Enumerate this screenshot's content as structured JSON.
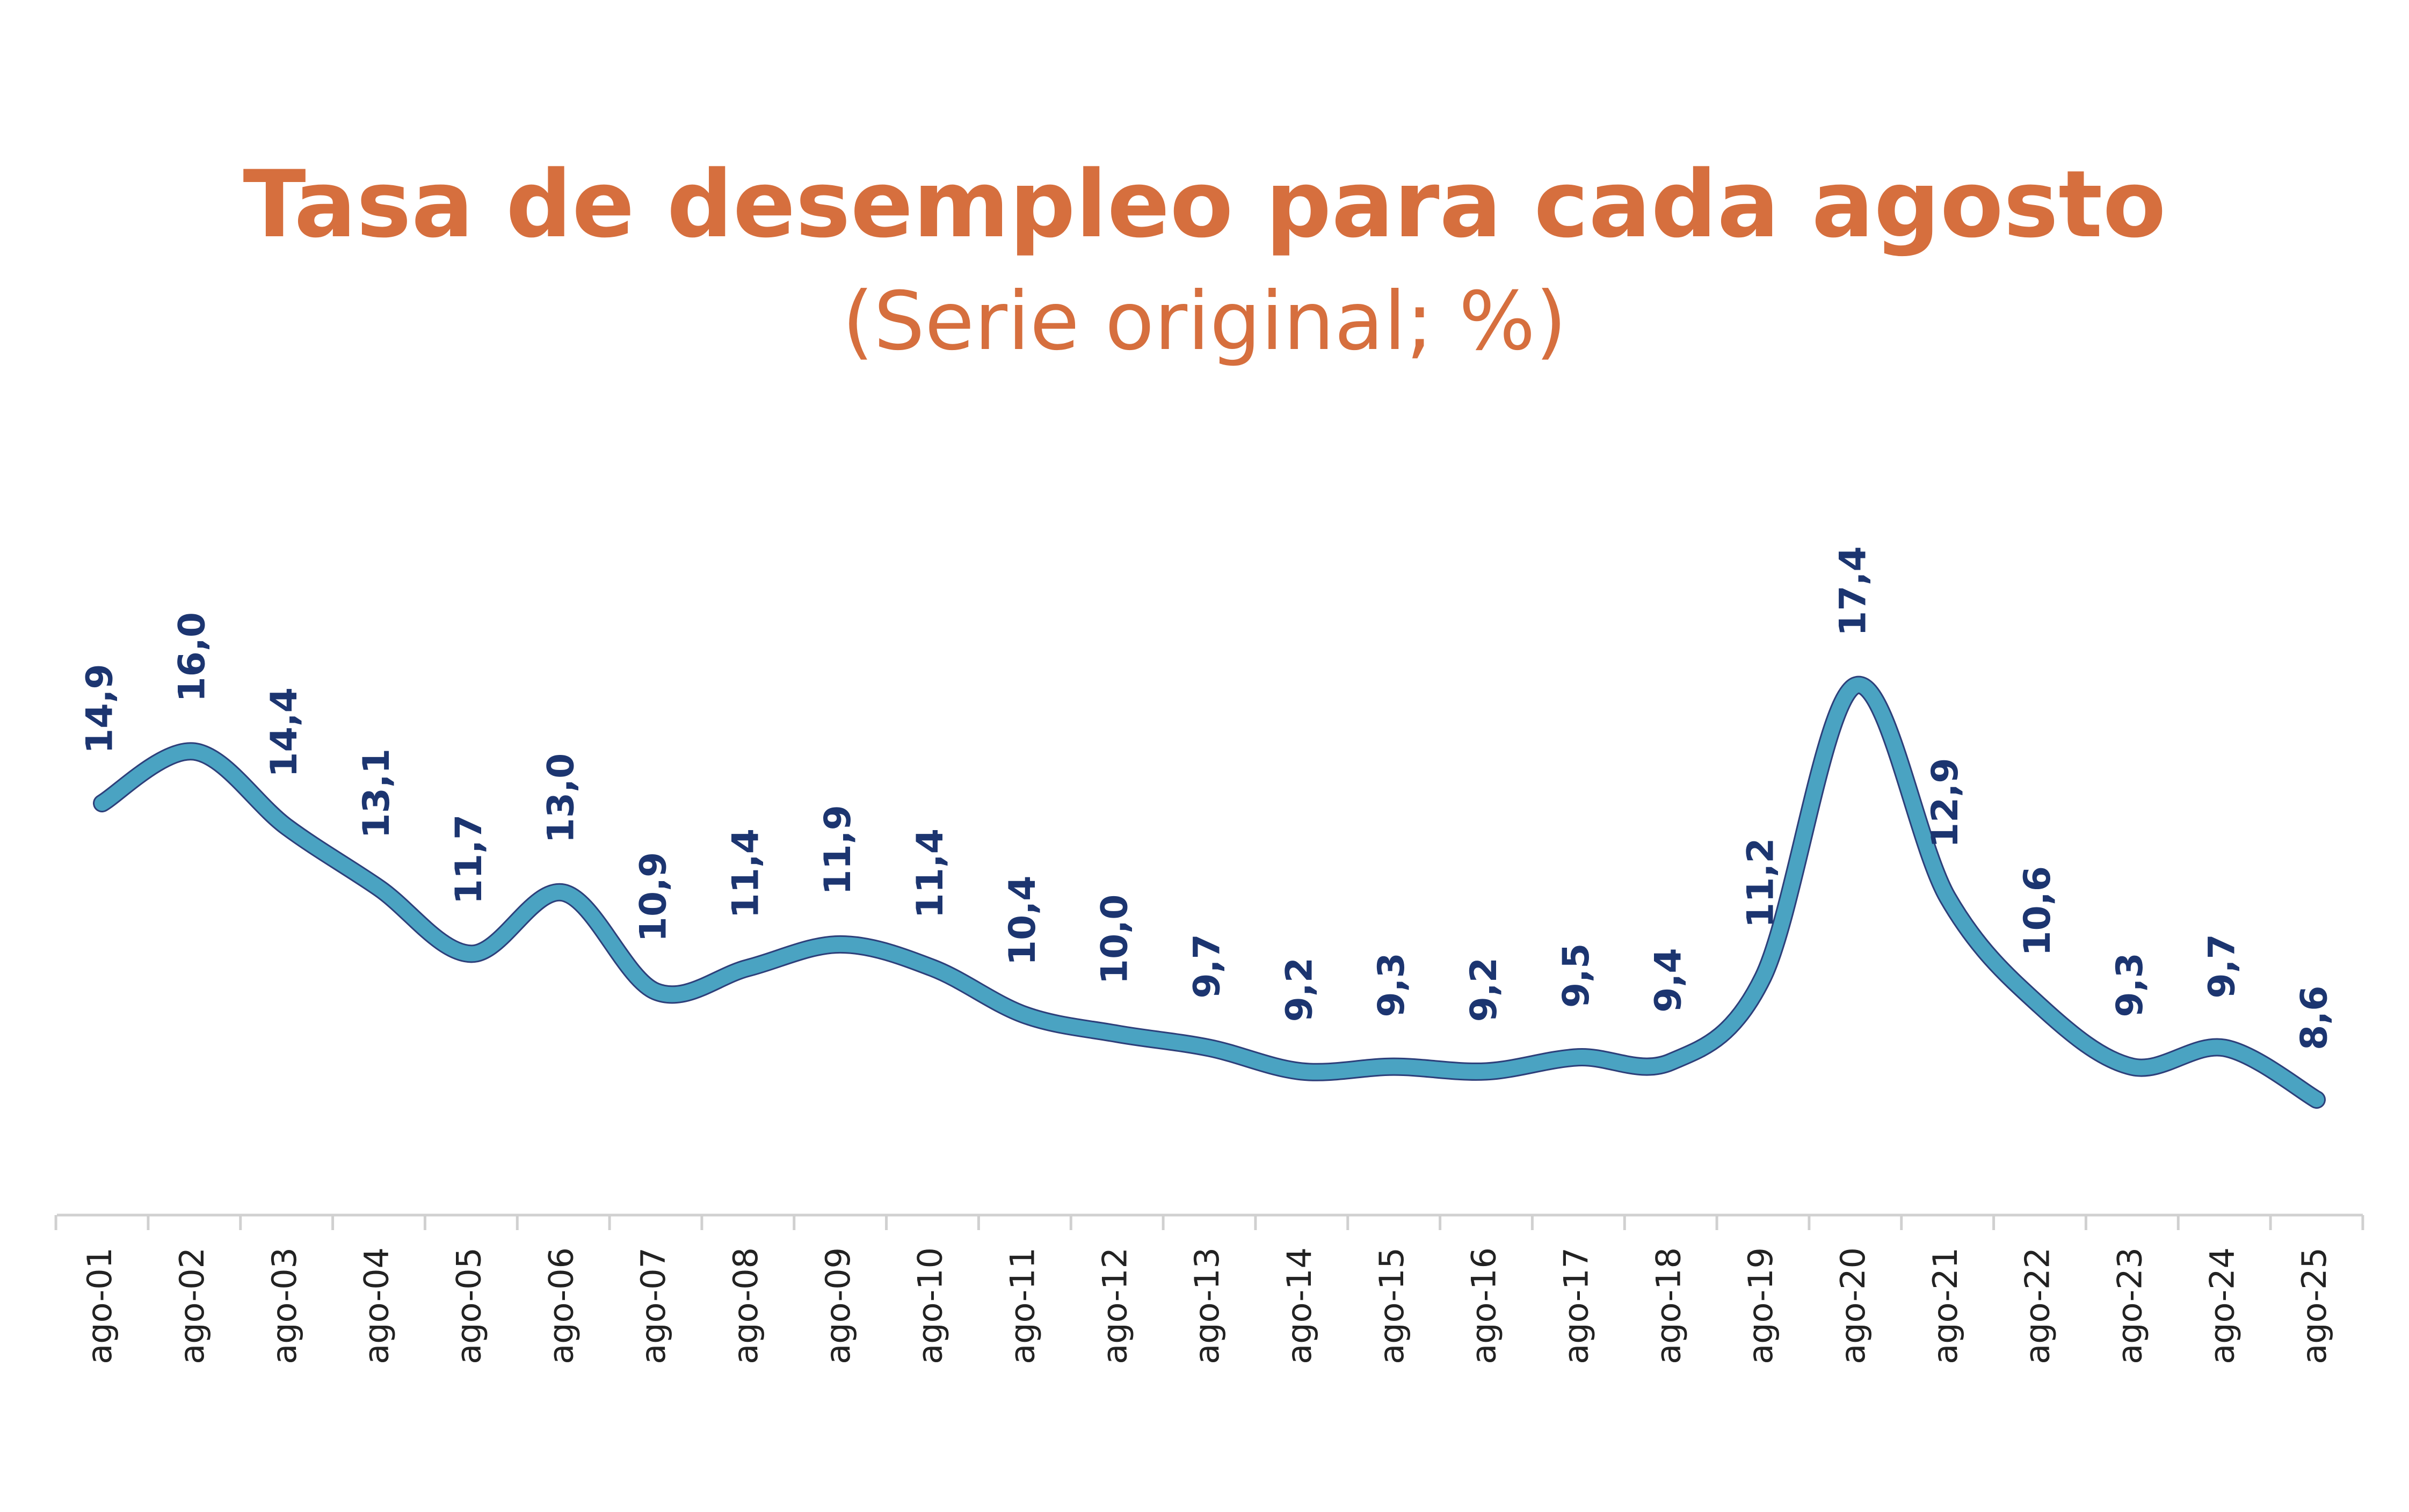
{
  "chart_data": {
    "type": "line",
    "title": "Tasa de desempleo para cada agosto",
    "subtitle": "(Serie original; %)",
    "categories": [
      "ago-01",
      "ago-02",
      "ago-03",
      "ago-04",
      "ago-05",
      "ago-06",
      "ago-07",
      "ago-08",
      "ago-09",
      "ago-10",
      "ago-11",
      "ago-12",
      "ago-13",
      "ago-14",
      "ago-15",
      "ago-16",
      "ago-17",
      "ago-18",
      "ago-19",
      "ago-20",
      "ago-21",
      "ago-22",
      "ago-23",
      "ago-24",
      "ago-25"
    ],
    "values": [
      14.9,
      16.0,
      14.4,
      13.1,
      11.7,
      13.0,
      10.9,
      11.4,
      11.9,
      11.4,
      10.4,
      10.0,
      9.7,
      9.2,
      9.3,
      9.2,
      9.5,
      9.4,
      11.2,
      17.4,
      12.9,
      10.6,
      9.3,
      9.7,
      8.6
    ],
    "value_labels": [
      "14,9",
      "16,0",
      "14,4",
      "13,1",
      "11,7",
      "13,0",
      "10,9",
      "11,4",
      "11,9",
      "11,4",
      "10,4",
      "10,0",
      "9,7",
      "9,2",
      "9,3",
      "9,2",
      "9,5",
      "9,4",
      "11,2",
      "17,4",
      "12,9",
      "10,6",
      "9,3",
      "9,7",
      "8,6"
    ],
    "color": "#4aa3c2"
  }
}
